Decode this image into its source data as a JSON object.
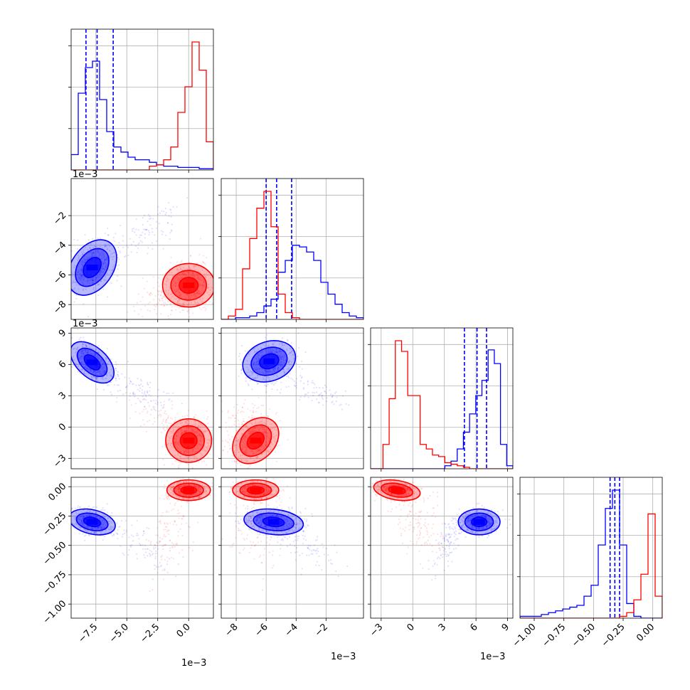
{
  "chart_data": {
    "type": "corner",
    "grid": true,
    "parameters": [
      {
        "range": [
          -9.5,
          2.0
        ],
        "ticks": [
          -7.5,
          -5.0,
          -2.5,
          0.0
        ],
        "tick_labels": [
          "−7.5",
          "−5.0",
          "−2.5",
          "0.0"
        ],
        "offset_label": "1e−3"
      },
      {
        "range": [
          -9.0,
          0.5
        ],
        "ticks": [
          -8,
          -6,
          -4,
          -2
        ],
        "tick_labels": [
          "−8",
          "−6",
          "−4",
          "−2"
        ],
        "offset_label": "1e−3"
      },
      {
        "range": [
          -4.0,
          9.5
        ],
        "ticks": [
          -3,
          0,
          3,
          6,
          9
        ],
        "tick_labels": [
          "−3",
          "0",
          "3",
          "6",
          "9"
        ],
        "offset_label": "1e−3"
      },
      {
        "range": [
          -1.12,
          0.08
        ],
        "ticks": [
          -1.0,
          -0.75,
          -0.5,
          -0.25,
          0.0
        ],
        "tick_labels": [
          "−1.00",
          "−0.75",
          "−0.50",
          "−0.25",
          "0.00"
        ],
        "offset_label": ""
      }
    ],
    "series": [
      {
        "color": "#0000ff",
        "quantiles": [
          [
            -8.3,
            -7.4,
            -6.1
          ],
          [
            -6.0,
            -5.3,
            -4.3
          ],
          [
            4.9,
            6.1,
            7.0
          ],
          [
            -0.36,
            -0.32,
            -0.28
          ]
        ],
        "histograms": [
          [
            12,
            60,
            80,
            85,
            55,
            30,
            18,
            14,
            10,
            8,
            8,
            6,
            4,
            3,
            3,
            2,
            2,
            2,
            1,
            1
          ],
          [
            0,
            0,
            1,
            1,
            2,
            4,
            8,
            12,
            28,
            35,
            44,
            43,
            40,
            35,
            22,
            15,
            9,
            4,
            2,
            1
          ],
          [
            0,
            0,
            0,
            0,
            0,
            0,
            0,
            0,
            0,
            0,
            0,
            0,
            2,
            5,
            13,
            24,
            36,
            48,
            58,
            78,
            69,
            16,
            2
          ],
          [
            1,
            1,
            1,
            2,
            3,
            4,
            5,
            6,
            7,
            12,
            18,
            40,
            60,
            70,
            40,
            8,
            1,
            0,
            0,
            0
          ]
        ],
        "clusters": [
          null,
          [
            {
              "x": -7.8,
              "y": -5.5,
              "sx": 0.9,
              "sy": 0.85,
              "rho": 0.35,
              "w": 0.85
            },
            {
              "x": -3.5,
              "y": -3.2,
              "sx": 1.4,
              "sy": 1.0,
              "rho": 0.7,
              "w": 0.15
            }
          ],
          [
            {
              "x": -7.8,
              "y": 6.2,
              "sx": 0.8,
              "sy": 0.9,
              "rho": -0.5,
              "w": 0.85
            },
            {
              "x": -4.0,
              "y": 3.5,
              "sx": 1.5,
              "sy": 1.0,
              "rho": -0.7,
              "w": 0.15
            }
          ],
          [
            {
              "x": -7.8,
              "y": -0.3,
              "sx": 0.85,
              "sy": 0.05,
              "rho": -0.3,
              "w": 0.85
            },
            {
              "x": -3.8,
              "y": -0.5,
              "sx": 1.5,
              "sy": 0.12,
              "rho": -0.7,
              "w": 0.15
            }
          ],
          null,
          [
            {
              "x": -5.8,
              "y": 6.3,
              "sx": 0.8,
              "sy": 0.9,
              "rho": 0.2,
              "w": 0.85
            },
            {
              "x": -3.0,
              "y": 3.5,
              "sx": 1.2,
              "sy": 0.8,
              "rho": -0.7,
              "w": 0.15
            }
          ],
          [
            {
              "x": -5.5,
              "y": -0.3,
              "sx": 0.9,
              "sy": 0.05,
              "rho": -0.2,
              "w": 0.85
            },
            {
              "x": -3.5,
              "y": -0.5,
              "sx": 1.2,
              "sy": 0.12,
              "rho": -0.7,
              "w": 0.15
            }
          ],
          null,
          null,
          [
            {
              "x": 6.3,
              "y": -0.3,
              "sx": 0.9,
              "sy": 0.05,
              "rho": 0.0,
              "w": 0.8
            },
            {
              "x": 3.5,
              "y": -0.45,
              "sx": 0.8,
              "sy": 0.12,
              "rho": 0.7,
              "w": 0.2
            }
          ]
        ]
      },
      {
        "color": "#ff0000",
        "quantiles": null,
        "histograms": [
          [
            0,
            0,
            0,
            0,
            0,
            0,
            0,
            0,
            0,
            0,
            0,
            3,
            4,
            8,
            18,
            45,
            65,
            100,
            78,
            22
          ],
          [
            0,
            2,
            6,
            30,
            48,
            66,
            76,
            55,
            15,
            4,
            1,
            0,
            0,
            0,
            0,
            0,
            0,
            0,
            0,
            0
          ],
          [
            0,
            0,
            16,
            46,
            84,
            77,
            48,
            48,
            16,
            13,
            9,
            8,
            4,
            3,
            2,
            1,
            0,
            0,
            0,
            0,
            0,
            0,
            0
          ],
          [
            0,
            0,
            0,
            0,
            0,
            0,
            0,
            0,
            0,
            0,
            0,
            0,
            0,
            0,
            1,
            3,
            10,
            24,
            57,
            12
          ]
        ],
        "clusters": [
          null,
          [
            {
              "x": 0.0,
              "y": -6.7,
              "sx": 0.8,
              "sy": 0.8,
              "rho": 0.0,
              "w": 0.85
            },
            {
              "x": -2.0,
              "y": -7.5,
              "sx": 1.2,
              "sy": 0.7,
              "rho": 0.2,
              "w": 0.15
            }
          ],
          [
            {
              "x": 0.0,
              "y": -1.3,
              "sx": 0.8,
              "sy": 1.0,
              "rho": 0.0,
              "w": 0.85
            },
            {
              "x": -2.5,
              "y": 1.0,
              "sx": 1.3,
              "sy": 1.2,
              "rho": -0.6,
              "w": 0.15
            }
          ],
          [
            {
              "x": 0.0,
              "y": -0.03,
              "sx": 0.8,
              "sy": 0.04,
              "rho": 0.0,
              "w": 0.8
            },
            {
              "x": -1.5,
              "y": -0.35,
              "sx": 0.9,
              "sy": 0.22,
              "rho": 0.5,
              "w": 0.2
            }
          ],
          null,
          [
            {
              "x": -6.7,
              "y": -1.3,
              "sx": 0.7,
              "sy": 1.0,
              "rho": 0.3,
              "w": 0.85
            },
            {
              "x": -7.5,
              "y": 0.5,
              "sx": 0.9,
              "sy": 1.4,
              "rho": 0.2,
              "w": 0.15
            }
          ],
          [
            {
              "x": -6.7,
              "y": -0.03,
              "sx": 0.7,
              "sy": 0.04,
              "rho": 0.0,
              "w": 0.8
            },
            {
              "x": -6.8,
              "y": -0.35,
              "sx": 0.9,
              "sy": 0.22,
              "rho": 0.0,
              "w": 0.2
            }
          ],
          null,
          null,
          [
            {
              "x": -1.5,
              "y": -0.03,
              "sx": 1.0,
              "sy": 0.04,
              "rho": -0.3,
              "w": 0.8
            },
            {
              "x": 0.5,
              "y": -0.3,
              "sx": 1.3,
              "sy": 0.18,
              "rho": -0.6,
              "w": 0.2
            }
          ]
        ]
      }
    ]
  }
}
